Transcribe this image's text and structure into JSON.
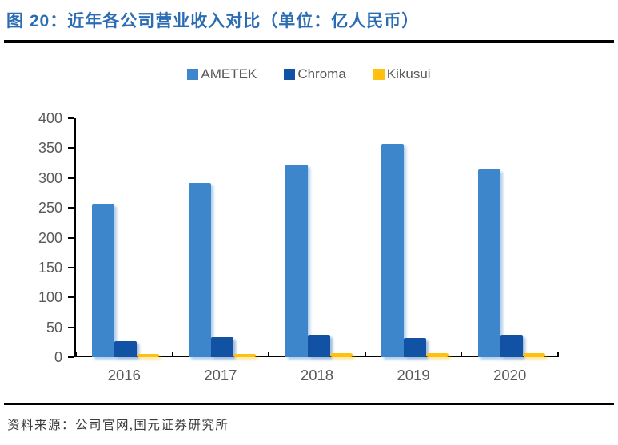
{
  "title": "图 20：近年各公司营业收入对比（单位：亿人民币）",
  "source": "资料来源：公司官网,国元证券研究所",
  "colors": {
    "title_blue": "#2B6CB3",
    "axis_text": "#595959",
    "axis_line": "#000000",
    "ametek": "#3E86CB",
    "chroma": "#1152A5",
    "kikusui": "#FFC010"
  },
  "chart_data": {
    "type": "bar",
    "categories": [
      "2016",
      "2017",
      "2018",
      "2019",
      "2020"
    ],
    "series": [
      {
        "name": "AMETEK",
        "color": "#3E86CB",
        "values": [
          257,
          292,
          322,
          357,
          315
        ]
      },
      {
        "name": "Chroma",
        "color": "#1152A5",
        "values": [
          27,
          34,
          38,
          32,
          37
        ]
      },
      {
        "name": "Kikusui",
        "color": "#FFC010",
        "values": [
          6,
          6,
          7,
          7,
          7
        ]
      }
    ],
    "title": "近年各公司营业收入对比",
    "unit": "亿人民币",
    "xlabel": "",
    "ylabel": "",
    "ylim": [
      0,
      400
    ],
    "ytick_step": 50,
    "grid": false,
    "legend_position": "top"
  }
}
